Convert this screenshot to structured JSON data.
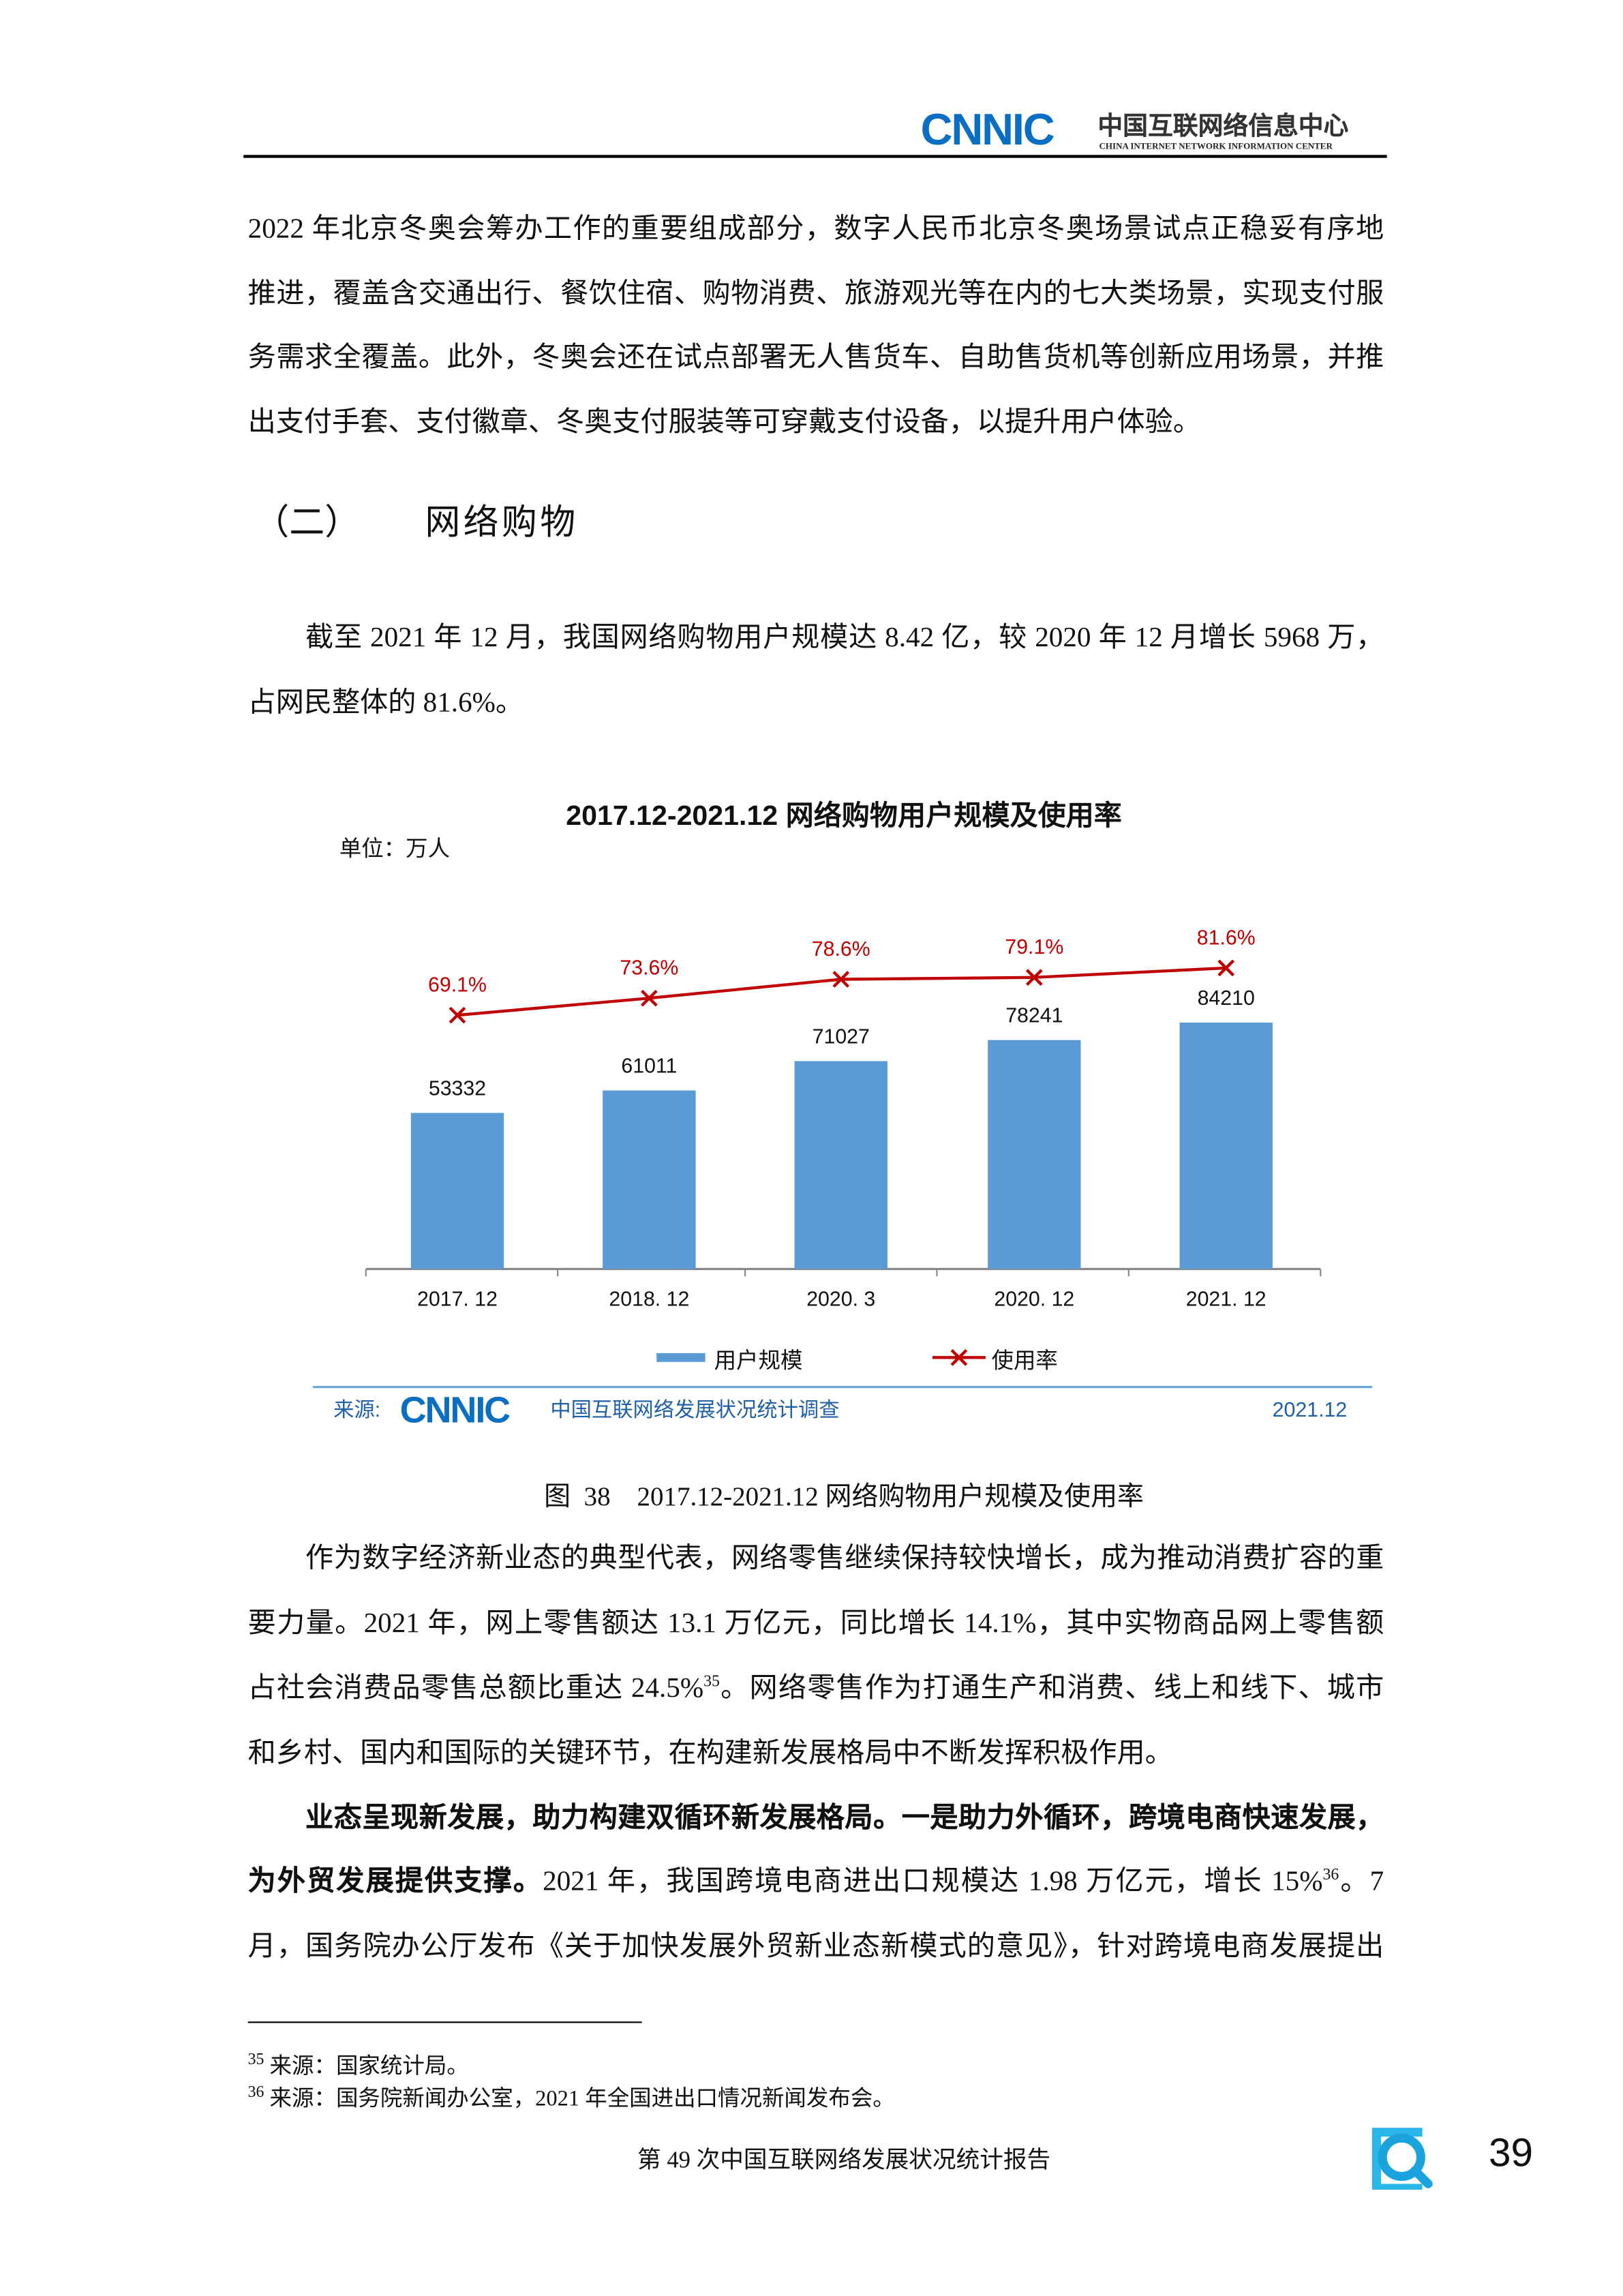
{
  "header": {
    "logo_text": "CNNIC",
    "org_cn": "中国互联网络信息中心",
    "org_en": "CHINA INTERNET NETWORK INFORMATION CENTER"
  },
  "para1": [
    "2022 年北京冬奥会筹办工作的重要组成部分，数字人民币北京冬奥场景试点正稳妥有序地",
    "推进，覆盖含交通出行、餐饮住宿、购物消费、旅游观光等在内的七大类场景，实现支付服",
    "务需求全覆盖。此外，冬奥会还在试点部署无人售货车、自助售货机等创新应用场景，并推",
    "出支付手套、支付徽章、冬奥支付服装等可穿戴支付设备，以提升用户体验。"
  ],
  "section": {
    "number": "（二）",
    "title": "网络购物"
  },
  "para2": [
    "截至 2021 年 12 月，我国网络购物用户规模达 8.42 亿，较 2020 年 12 月增长 5968 万，",
    "占网民整体的 81.6%。"
  ],
  "chart_data": {
    "type": "bar+line",
    "title": "2017.12-2021.12 网络购物用户规模及使用率",
    "unit": "单位：万人",
    "categories": [
      "2017. 12",
      "2018. 12",
      "2020. 3",
      "2020. 12",
      "2021. 12"
    ],
    "series": [
      {
        "name": "用户规模",
        "type": "bar",
        "values": [
          53332,
          61011,
          71027,
          78241,
          84210
        ],
        "labels": [
          "53332",
          "61011",
          "71027",
          "78241",
          "84210"
        ],
        "color": "#5b9bd5"
      },
      {
        "name": "使用率",
        "type": "line",
        "values": [
          69.1,
          73.6,
          78.6,
          79.1,
          81.6
        ],
        "labels": [
          "69.1%",
          "73.6%",
          "78.6%",
          "79.1%",
          "81.6%"
        ],
        "color": "#c00000",
        "marker": "x"
      }
    ],
    "legend": "bottom",
    "grid": false,
    "source_label": "来源:",
    "source_logo": "CNNIC",
    "source_text": "中国互联网络发展状况统计调查",
    "date": "2021.12",
    "watermark": "CNNIC"
  },
  "caption": "图  38    2017.12-2021.12 网络购物用户规模及使用率",
  "para3": [
    "作为数字经济新业态的典型代表，网络零售继续保持较快增长，成为推动消费扩容的重",
    "要力量。2021 年，网上零售额达 13.1 万亿元，同比增长 14.1%，其中实物商品网上零售额",
    "占社会消费品零售总额比重达 24.5%",
    "35",
    "。网络零售作为打通生产和消费、线上和线下、城市",
    "和乡村、国内和国际的关键环节，在构建新发展格局中不断发挥积极作用。"
  ],
  "para4": {
    "bold1": "业态呈现新发展，助力构建双循环新发展格局。一是助力外循环，跨境电商快速发展，",
    "bold2": "为外贸发展提供支撑。",
    "rest2": "2021 年，我国跨境电商进出口规模达 1.98 万亿元，增长 15%",
    "sup2": "36",
    "end2": "。7",
    "line3": "月，国务院办公厅发布《关于加快发展外贸新业态新模式的意见》，针对跨境电商发展提出"
  },
  "footnotes": [
    {
      "num": "35",
      "text": "来源：国家统计局。"
    },
    {
      "num": "36",
      "text": "来源：国务院新闻办公室，2021 年全国进出口情况新闻发布会。"
    }
  ],
  "footer": {
    "report_title": "第 49 次中国互联网络发展状况统计报告",
    "page_number": "39"
  },
  "colors": {
    "brand_blue": "#0a6fc2",
    "bar": "#5b9bd5",
    "line": "#c00000",
    "icon_cyan": "#29b6e8"
  }
}
